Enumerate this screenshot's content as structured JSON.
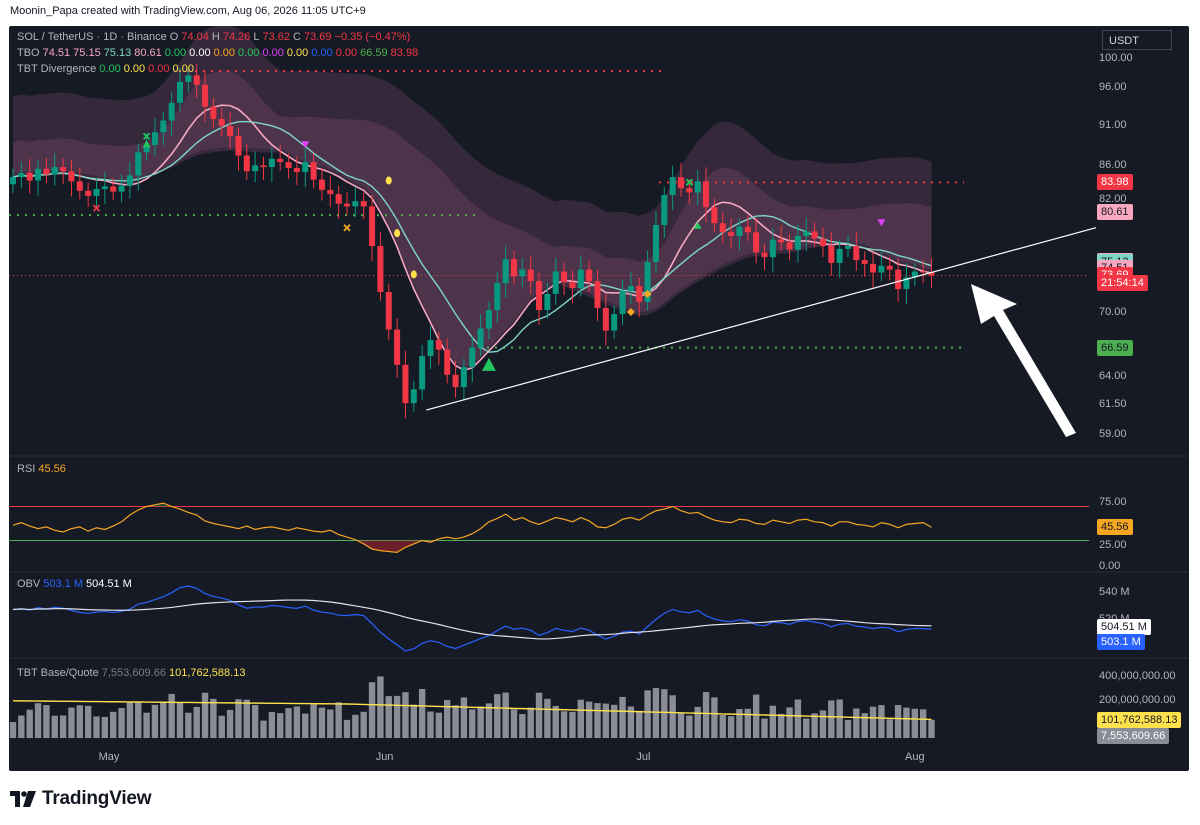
{
  "header": {
    "caption": "Moonin_Papa created with TradingView.com, Aug 06, 2026 11:05 UTC+9",
    "currency_button": "USDT"
  },
  "brand": {
    "name": "TradingView",
    "logo_icon": "tradingview-logo-icon"
  },
  "legends": {
    "main": [
      {
        "text": "SOL / TetherUS · 1D · Binance",
        "color": "#b2b5be"
      },
      {
        "text": "O",
        "color": "#b2b5be"
      },
      {
        "text": "74.04",
        "color": "#f23645"
      },
      {
        "text": "H",
        "color": "#b2b5be"
      },
      {
        "text": "74.26",
        "color": "#f23645"
      },
      {
        "text": "L",
        "color": "#b2b5be"
      },
      {
        "text": "73.62",
        "color": "#f23645"
      },
      {
        "text": "C",
        "color": "#b2b5be"
      },
      {
        "text": "73.69",
        "color": "#f23645"
      },
      {
        "text": "−0.35 (−0.47%)",
        "color": "#f23645"
      }
    ],
    "tbo": [
      {
        "text": "TBO",
        "color": "#b2b5be"
      },
      {
        "text": "74.51",
        "color": "#f7a8c0"
      },
      {
        "text": "75.15",
        "color": "#f7a8c0"
      },
      {
        "text": "75.13",
        "color": "#7fd6c8"
      },
      {
        "text": "80.61",
        "color": "#f7a8c0"
      },
      {
        "text": "0.00",
        "color": "#22c55e"
      },
      {
        "text": "0.00",
        "color": "#ffffff"
      },
      {
        "text": "0.00",
        "color": "#f5a623"
      },
      {
        "text": "0.00",
        "color": "#22c55e"
      },
      {
        "text": "0.00",
        "color": "#e040fb"
      },
      {
        "text": "0.00",
        "color": "#ffe14d"
      },
      {
        "text": "0.00",
        "color": "#2962ff"
      },
      {
        "text": "0.00",
        "color": "#f23645"
      },
      {
        "text": "66.59",
        "color": "#4caf50"
      },
      {
        "text": "83.98",
        "color": "#f23645"
      }
    ],
    "divergence": [
      {
        "text": "TBT Divergence",
        "color": "#b2b5be"
      },
      {
        "text": "0.00",
        "color": "#22c55e"
      },
      {
        "text": "0.00",
        "color": "#ffe14d"
      },
      {
        "text": "0.00",
        "color": "#f23645"
      },
      {
        "text": "0.00",
        "color": "#ffe14d"
      }
    ],
    "rsi": [
      {
        "text": "RSI",
        "color": "#b2b5be"
      },
      {
        "text": "45.56",
        "color": "#f5a623"
      }
    ],
    "obv": [
      {
        "text": "OBV",
        "color": "#b2b5be"
      },
      {
        "text": "503.1 M",
        "color": "#2962ff"
      },
      {
        "text": "504.51 M",
        "color": "#ffffff"
      }
    ],
    "basequote": [
      {
        "text": "TBT Base/Quote",
        "color": "#b2b5be"
      },
      {
        "text": "7,553,609.66",
        "color": "#787b86"
      },
      {
        "text": "101,762,588.13",
        "color": "#ffe14d"
      }
    ]
  },
  "chart_data": [
    {
      "type": "candlestick",
      "title": "SOL / TetherUS · 1D · Binance",
      "x_ticks": [
        "May",
        "Jun",
        "Jul",
        "Aug"
      ],
      "y_ticks": [
        "100.00",
        "96.00",
        "91.00",
        "86.00",
        "82.00",
        "70.00",
        "64.00",
        "61.50",
        "59.00"
      ],
      "y_scale": "log",
      "ylim": [
        58,
        100
      ],
      "last_ohlc": {
        "open": 74.04,
        "high": 74.26,
        "low": 73.62,
        "close": 73.69,
        "change": -0.35,
        "change_pct": -0.47
      },
      "price_tags": [
        {
          "text": "83.98",
          "bg": "#f23645",
          "fg": "#ffffff",
          "value": 83.98
        },
        {
          "text": "80.61",
          "bg": "#f7a8c0",
          "fg": "#131722",
          "value": 80.61
        },
        {
          "text": "75.15",
          "bg": "#f7a8c0",
          "fg": "#131722",
          "value": 75.15
        },
        {
          "text": "75.13",
          "bg": "#7fd6c8",
          "fg": "#131722",
          "value": 75.13
        },
        {
          "text": "74.51",
          "bg": "#f7a8c0",
          "fg": "#131722",
          "value": 74.51
        },
        {
          "text": "73.69",
          "bg": "#f23645",
          "fg": "#ffffff",
          "value": 73.69
        },
        {
          "text": "21:54:14",
          "bg": "#f23645",
          "fg": "#ffffff",
          "value": 72.9
        },
        {
          "text": "66.59",
          "bg": "#4caf50",
          "fg": "#131722",
          "value": 66.59
        }
      ],
      "closes": [
        84.6,
        85.1,
        84.2,
        85.6,
        84.9,
        85.8,
        85.3,
        84.1,
        83.0,
        82.4,
        83.2,
        83.5,
        82.9,
        83.6,
        84.8,
        87.6,
        88.5,
        90.1,
        91.6,
        93.9,
        96.7,
        97.6,
        96.3,
        93.4,
        91.8,
        90.9,
        89.6,
        87.2,
        85.3,
        86.0,
        85.8,
        86.8,
        86.4,
        85.7,
        85.2,
        86.4,
        84.3,
        83.1,
        82.6,
        81.5,
        81.2,
        81.8,
        81.2,
        76.8,
        72.0,
        68.3,
        65.0,
        61.6,
        62.8,
        65.8,
        67.3,
        66.4,
        64.1,
        63.0,
        64.8,
        66.6,
        68.4,
        70.2,
        72.9,
        75.4,
        73.6,
        74.3,
        73.1,
        70.2,
        71.8,
        74.1,
        73.0,
        72.4,
        74.3,
        73.1,
        70.4,
        68.2,
        69.8,
        72.1,
        72.6,
        71.0,
        75.1,
        79.1,
        82.5,
        84.6,
        83.3,
        82.8,
        84.1,
        81.1,
        79.3,
        78.3,
        77.9,
        78.9,
        78.3,
        76.1,
        75.6,
        77.5,
        77.2,
        76.4,
        77.9,
        78.4,
        77.6,
        76.8,
        75.0,
        76.5,
        76.8,
        75.3,
        74.9,
        74.0,
        74.7,
        74.3,
        72.3,
        73.5,
        74.1,
        74.0,
        73.69
      ],
      "trendline": [
        [
          61.0,
          "Jun 8"
        ],
        [
          74.0,
          "Aug 6"
        ]
      ],
      "projection_line_values": [
        83.98,
        66.59
      ],
      "arrow": "pointing at last candle from lower right"
    },
    {
      "type": "line",
      "name": "RSI",
      "last": 45.56,
      "y_ticks": [
        "75.00",
        "25.00",
        "0.00"
      ],
      "levels": [
        70,
        30
      ],
      "values": [
        48,
        51,
        47,
        44,
        46,
        42,
        40,
        44,
        46,
        41,
        45,
        43,
        47,
        52,
        60,
        66,
        70,
        72,
        74,
        70,
        67,
        63,
        60,
        53,
        50,
        48,
        46,
        44,
        47,
        43,
        45,
        46,
        44,
        42,
        45,
        43,
        41,
        40,
        42,
        37,
        34,
        31,
        26,
        20,
        18,
        17,
        16,
        22,
        26,
        30,
        28,
        32,
        34,
        32,
        34,
        38,
        44,
        52,
        56,
        61,
        54,
        57,
        52,
        49,
        53,
        57,
        55,
        52,
        57,
        53,
        46,
        45,
        49,
        55,
        57,
        54,
        60,
        65,
        67,
        70,
        65,
        62,
        63,
        58,
        54,
        52,
        51,
        55,
        54,
        50,
        49,
        54,
        52,
        50,
        54,
        55,
        52,
        51,
        47,
        52,
        52,
        49,
        48,
        46,
        51,
        49,
        45,
        49,
        50,
        51,
        45.56
      ]
    },
    {
      "type": "line",
      "name": "OBV",
      "series": [
        {
          "name": "OBV",
          "last_text": "503.1 M"
        },
        {
          "name": "OBV MA",
          "last_text": "504.51 M"
        }
      ],
      "y_ticks": [
        "540 M",
        "520 M"
      ]
    },
    {
      "type": "bar",
      "name": "TBT Base/Quote",
      "y_ticks": [
        "400,000,000.00",
        "200,000,000.00"
      ],
      "last_base": "7,553,609.66",
      "last_ma": "101,762,588.13"
    }
  ]
}
